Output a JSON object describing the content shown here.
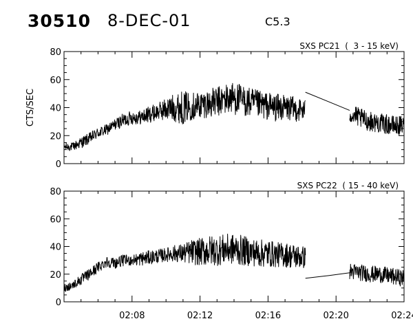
{
  "header": {
    "id": "30510",
    "date": "8-DEC-01",
    "flare_class": "C5.3"
  },
  "chart_data": [
    {
      "type": "line",
      "title": "SXS PC21  (  3 - 15 keV)",
      "xlabel": "",
      "ylabel": "CTS/SEC",
      "x_unit": "minutes after 02:00",
      "xlim": [
        4.0,
        24.0
      ],
      "ylim": [
        0,
        80
      ],
      "yticks": [
        "0",
        "20",
        "40",
        "60",
        "80"
      ],
      "xtick_values": [
        8,
        12,
        16,
        20,
        24
      ],
      "xtick_labels": [
        "02:08",
        "02:12",
        "02:16",
        "02:20",
        "02:24"
      ],
      "grid": false,
      "series": [
        {
          "segments": [
            {
              "x": [
                4.0,
                4.5,
                5.0,
                5.5,
                6.0,
                6.5,
                7.0,
                7.5,
                8.0,
                8.5,
                9.0,
                9.5,
                10.0,
                10.5,
                11.0,
                11.5,
                12.0,
                12.5,
                13.0,
                13.5,
                14.0,
                14.5,
                15.0,
                15.5,
                16.0,
                16.5,
                17.0,
                17.5,
                18.2
              ],
              "y": [
                12,
                12,
                15,
                18,
                22,
                24,
                28,
                31,
                33,
                33,
                35,
                37,
                39,
                40,
                40,
                41,
                42,
                43,
                44,
                46,
                47,
                45,
                43,
                42,
                41,
                40,
                40,
                39,
                38
              ],
              "noise": [
                3,
                3,
                4,
                4,
                4,
                4,
                4,
                5,
                5,
                5,
                6,
                6,
                8,
                10,
                12,
                10,
                10,
                10,
                11,
                11,
                12,
                11,
                11,
                10,
                10,
                10,
                9,
                9,
                8
              ]
            },
            {
              "x": [
                18.2,
                19.6,
                20.8
              ],
              "y": [
                51,
                44,
                38
              ],
              "noise": [
                0,
                0,
                0
              ]
            },
            {
              "x": [
                20.8,
                21.5,
                22.0,
                22.5,
                23.0,
                23.5,
                24.0
              ],
              "y": [
                36,
                32,
                30,
                29,
                28,
                27,
                27
              ],
              "noise": [
                7,
                7,
                7,
                7,
                7,
                7,
                7
              ]
            }
          ]
        }
      ]
    },
    {
      "type": "line",
      "title": "SXS PC22  ( 15 - 40 keV)",
      "xlabel": "",
      "ylabel": "",
      "x_unit": "minutes after 02:00",
      "xlim": [
        4.0,
        24.0
      ],
      "ylim": [
        0,
        80
      ],
      "yticks": [
        "0",
        "20",
        "40",
        "60",
        "80"
      ],
      "xtick_values": [
        8,
        12,
        16,
        20,
        24
      ],
      "xtick_labels": [
        "02:08",
        "02:12",
        "02:16",
        "02:20",
        "02:24"
      ],
      "grid": false,
      "series": [
        {
          "segments": [
            {
              "x": [
                4.0,
                4.5,
                5.0,
                5.5,
                6.0,
                6.5,
                7.0,
                7.5,
                8.0,
                8.5,
                9.0,
                9.5,
                10.0,
                10.5,
                11.0,
                11.5,
                12.0,
                12.5,
                13.0,
                13.5,
                14.0,
                14.5,
                15.0,
                15.5,
                16.0,
                16.5,
                17.0,
                17.5,
                18.2
              ],
              "y": [
                10,
                12,
                16,
                20,
                25,
                29,
                28,
                30,
                30,
                31,
                32,
                33,
                34,
                35,
                35,
                36,
                36,
                37,
                37,
                38,
                38,
                37,
                36,
                35,
                35,
                34,
                34,
                33,
                32
              ],
              "noise": [
                3,
                3,
                4,
                4,
                4,
                4,
                4,
                4,
                4,
                5,
                5,
                5,
                5,
                6,
                7,
                9,
                10,
                11,
                11,
                11,
                11,
                11,
                10,
                10,
                10,
                9,
                9,
                9,
                8
              ]
            },
            {
              "x": [
                18.2,
                19.6,
                20.8
              ],
              "y": [
                17,
                19,
                21
              ],
              "noise": [
                0,
                0,
                0
              ]
            },
            {
              "x": [
                20.8,
                21.5,
                22.0,
                22.5,
                23.0,
                23.5,
                24.0
              ],
              "y": [
                22,
                21,
                20,
                20,
                19,
                18,
                17
              ],
              "noise": [
                6,
                6,
                6,
                6,
                6,
                6,
                6
              ]
            }
          ]
        }
      ]
    }
  ]
}
